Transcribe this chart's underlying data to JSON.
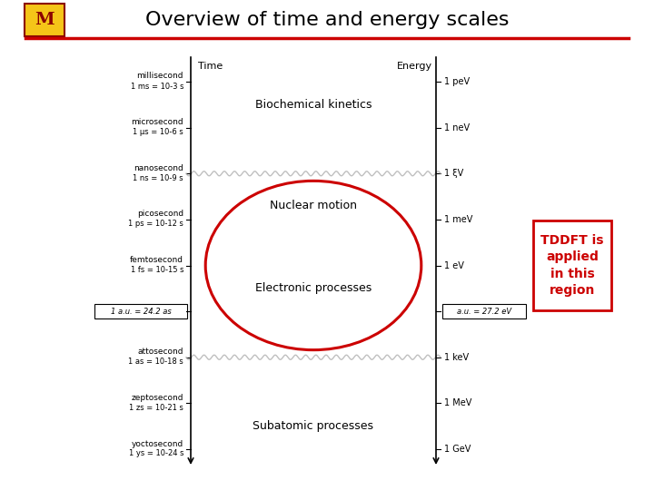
{
  "title": "Overview of time and energy scales",
  "title_fontsize": 16,
  "background_color": "#ffffff",
  "header_line_color": "#cc0000",
  "time_labels": [
    [
      "millisecond",
      "1 ms = 10",
      "-3",
      " s"
    ],
    [
      "microsecond",
      "1 μs = 10",
      "-6",
      " s"
    ],
    [
      "nanosecond",
      "1 ns = 10",
      "-9",
      " s"
    ],
    [
      "picosecond",
      "1 ps = 10",
      "-12",
      " s"
    ],
    [
      "femtosecond",
      "1 fs = 10",
      "-15",
      " s"
    ],
    [
      "1 a.u. = 24.2 as",
      "",
      "",
      ""
    ],
    [
      "attosecond",
      "1 as = 10",
      "-18",
      " s"
    ],
    [
      "zeptosecond",
      "1 zs = 10",
      "-21",
      " s"
    ],
    [
      "yoctosecond",
      "1 ys = 10",
      "-24",
      " s"
    ]
  ],
  "energy_labels": [
    "1 peV",
    "1 neV",
    "1 ξV",
    "1 meV",
    "1 eV",
    "a.u. = 27.2 eV",
    "1 keV",
    "1 MeV",
    "1 GeV"
  ],
  "region_labels": [
    "Biochemical kinetics",
    "Nuclear motion",
    "Electronic processes",
    "Subatomic processes"
  ],
  "ellipse_color": "#cc0000",
  "tddft_text": "TDDFT is\napplied\nin this\nregion",
  "tddft_color": "#cc0000",
  "tddft_box_color": "#cc0000",
  "wavy_color": "#aaaaaa"
}
